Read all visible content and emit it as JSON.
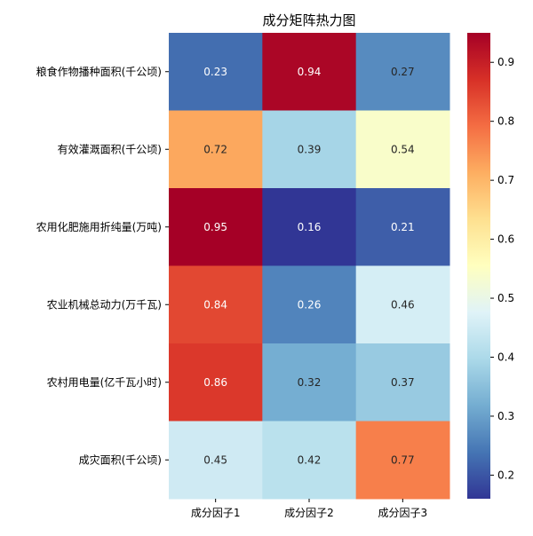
{
  "chart_data": {
    "type": "heatmap",
    "title": "成分矩阵热力图",
    "xlabel": "",
    "ylabel": "",
    "columns": [
      "成分因子1",
      "成分因子2",
      "成分因子3"
    ],
    "rows": [
      "粮食作物播种面积(千公顷)",
      "有效灌溉面积(千公顷)",
      "农用化肥施用折纯量(万吨)",
      "农业机械总动力(万千瓦)",
      "农村用电量(亿千瓦小时)",
      "成灾面积(千公顷)"
    ],
    "values": [
      [
        0.23,
        0.94,
        0.27
      ],
      [
        0.72,
        0.39,
        0.54
      ],
      [
        0.95,
        0.16,
        0.21
      ],
      [
        0.84,
        0.26,
        0.46
      ],
      [
        0.86,
        0.32,
        0.37
      ],
      [
        0.45,
        0.42,
        0.77
      ]
    ],
    "value_labels": [
      [
        "0.23",
        "0.94",
        "0.27"
      ],
      [
        "0.72",
        "0.39",
        "0.54"
      ],
      [
        "0.95",
        "0.16",
        "0.21"
      ],
      [
        "0.84",
        "0.26",
        "0.46"
      ],
      [
        "0.86",
        "0.32",
        "0.37"
      ],
      [
        "0.45",
        "0.42",
        "0.77"
      ]
    ],
    "colormap": "RdYlBu_r",
    "colormap_stops": [
      "#313695",
      "#4575b4",
      "#74add1",
      "#abd9e9",
      "#e0f3f8",
      "#ffffbf",
      "#fee090",
      "#fdae61",
      "#f46d43",
      "#d73027",
      "#a50026"
    ],
    "vmin": 0.16,
    "vmax": 0.95,
    "colorbar_ticks": [
      "0.2",
      "0.3",
      "0.4",
      "0.5",
      "0.6",
      "0.7",
      "0.8",
      "0.9"
    ],
    "grid": false,
    "legend": "colorbar-right"
  }
}
